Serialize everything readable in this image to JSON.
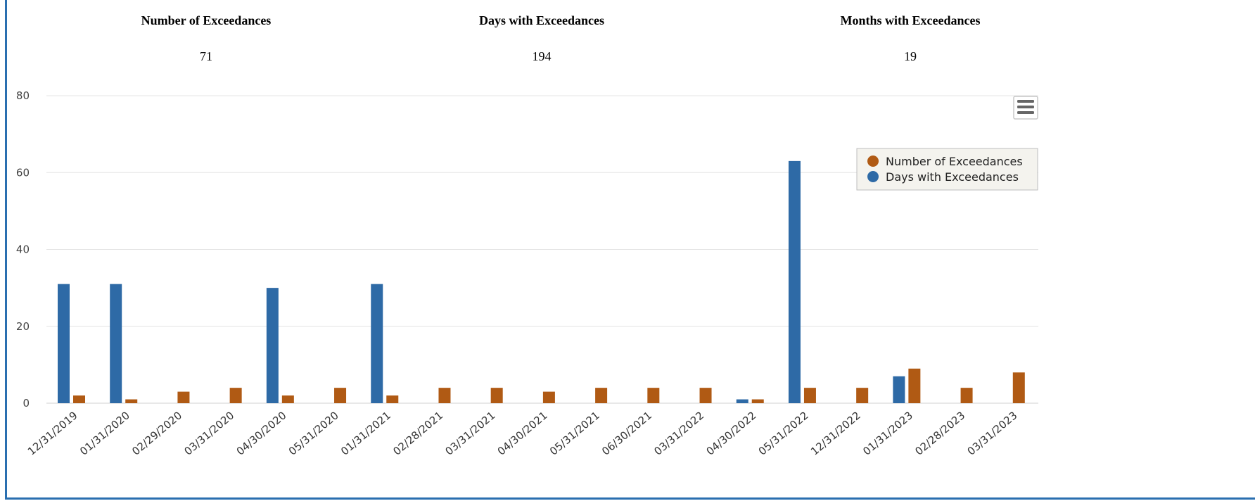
{
  "summary": [
    {
      "label": "Number of Exceedances",
      "value": "71"
    },
    {
      "label": "Days with Exceedances",
      "value": "194"
    },
    {
      "label": "Months with Exceedances",
      "value": "19"
    }
  ],
  "menu_icon": "hamburger-menu-icon",
  "chart_data": {
    "type": "bar",
    "categories": [
      "12/31/2019",
      "01/31/2020",
      "02/29/2020",
      "03/31/2020",
      "04/30/2020",
      "05/31/2020",
      "01/31/2021",
      "02/28/2021",
      "03/31/2021",
      "04/30/2021",
      "05/31/2021",
      "06/30/2021",
      "03/31/2022",
      "04/30/2022",
      "05/31/2022",
      "12/31/2022",
      "01/31/2023",
      "02/28/2023",
      "03/31/2023"
    ],
    "series": [
      {
        "name": "Days with Exceedances",
        "color": "#2e6aa6",
        "values": [
          31,
          31,
          0,
          0,
          30,
          0,
          31,
          0,
          0,
          0,
          0,
          0,
          0,
          1,
          63,
          0,
          7,
          0,
          0
        ]
      },
      {
        "name": "Number of Exceedances",
        "color": "#b05a14",
        "values": [
          2,
          1,
          3,
          4,
          2,
          4,
          2,
          4,
          4,
          3,
          4,
          4,
          4,
          1,
          4,
          4,
          9,
          4,
          8
        ]
      }
    ],
    "legend": [
      "Number of Exceedances",
      "Days with Exceedances"
    ],
    "legend_position": "top-right",
    "ylim": [
      0,
      80
    ],
    "yticks": [
      "0",
      "20",
      "40",
      "60",
      "80"
    ],
    "grid": true
  }
}
